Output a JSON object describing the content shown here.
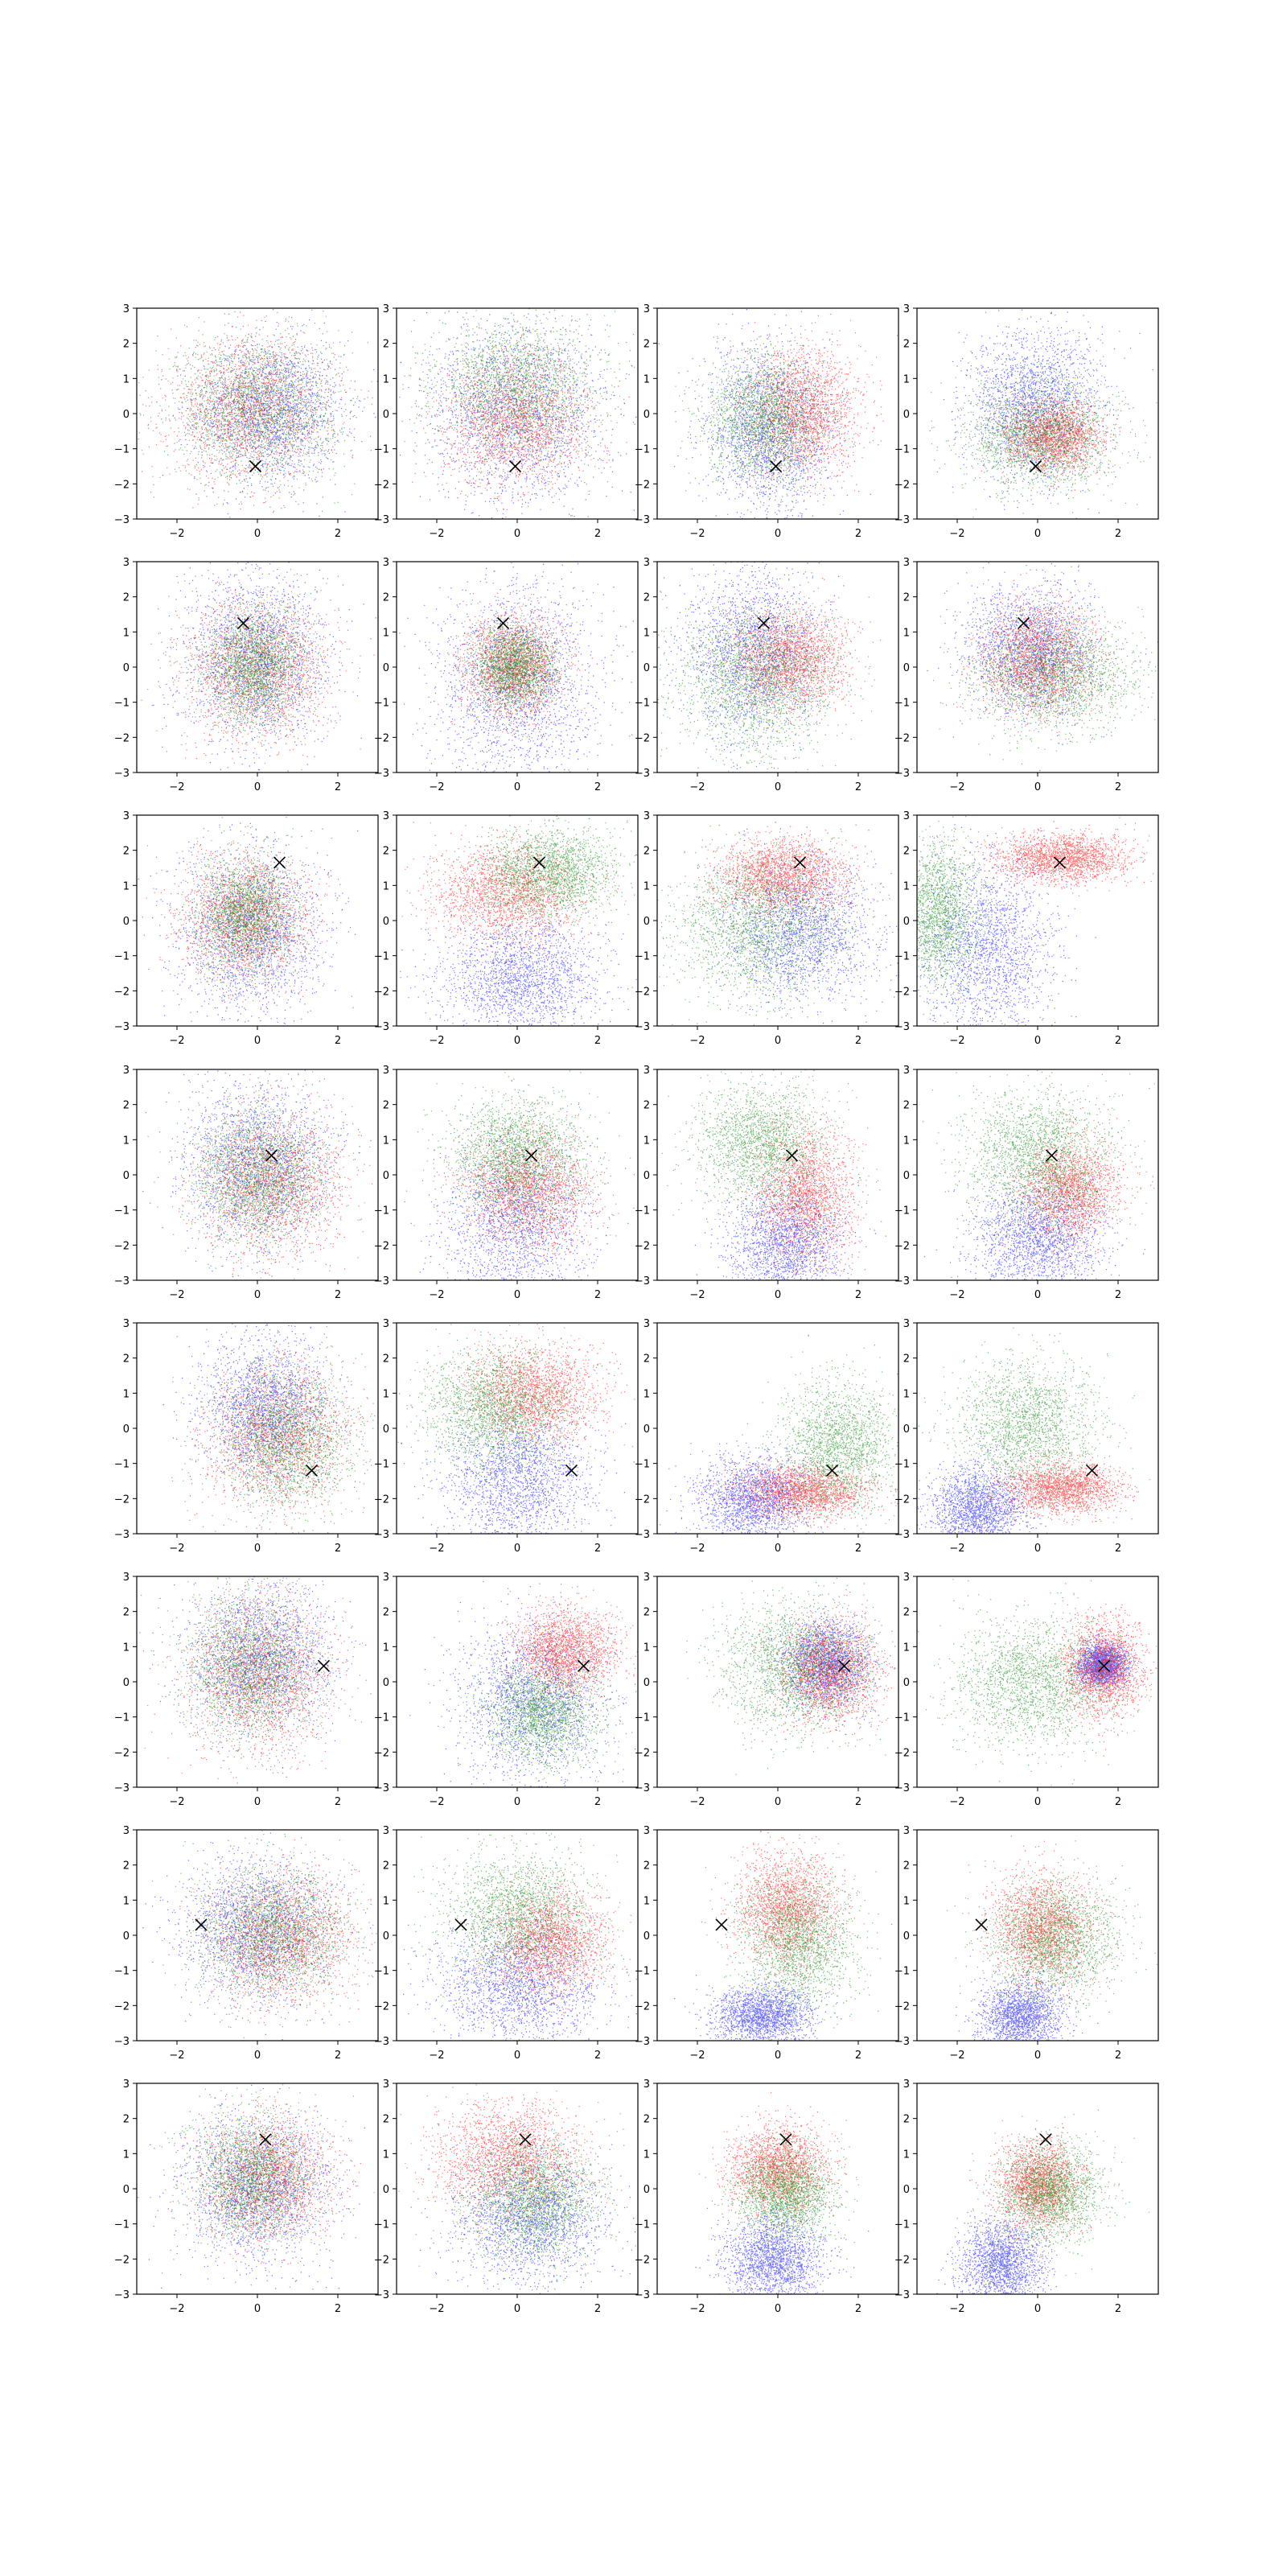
{
  "chart_data": {
    "type": "scatter",
    "grid": false,
    "layout": {
      "rows": 8,
      "cols": 4
    },
    "xlim": [
      -3,
      3
    ],
    "ylim": [
      -3,
      3
    ],
    "xticks": [
      -2,
      0,
      2
    ],
    "yticks": [
      -3,
      -2,
      -1,
      0,
      1,
      2,
      3
    ],
    "tick_labels": {
      "x": [
        "−2",
        "0",
        "2"
      ],
      "y": [
        "−3",
        "−2",
        "−1",
        "0",
        "1",
        "2",
        "3"
      ]
    },
    "series_colors": {
      "blue": "#0000ff",
      "red": "#ff0000",
      "green": "#008000"
    },
    "marker_color": "#000000",
    "points_per_series_approx": 2000,
    "rows": [
      {
        "marker": [
          -0.05,
          -1.5
        ],
        "panels": [
          {
            "blue": [
              0.3,
              0.1,
              0.9,
              1.0
            ],
            "red": [
              -0.2,
              0.1,
              1.0,
              1.0
            ],
            "green": [
              0.0,
              0.2,
              1.0,
              1.0
            ]
          },
          {
            "blue": [
              0.0,
              0.0,
              1.1,
              1.3
            ],
            "red": [
              0.0,
              -0.2,
              0.9,
              0.9
            ],
            "green": [
              0.0,
              0.8,
              1.0,
              0.9
            ]
          },
          {
            "blue": [
              -0.2,
              -0.5,
              0.8,
              1.2
            ],
            "red": [
              0.6,
              0.1,
              0.7,
              0.9
            ],
            "green": [
              -0.4,
              -0.2,
              0.7,
              0.9
            ]
          },
          {
            "blue": [
              -0.1,
              0.3,
              0.8,
              1.1
            ],
            "red": [
              0.4,
              -0.6,
              0.6,
              0.5
            ],
            "green": [
              0.0,
              -0.6,
              0.9,
              0.8
            ]
          }
        ]
      },
      {
        "marker": [
          -0.35,
          1.25
        ],
        "panels": [
          {
            "blue": [
              0.0,
              0.2,
              0.9,
              1.2
            ],
            "red": [
              0.0,
              0.0,
              0.9,
              1.0
            ],
            "green": [
              -0.1,
              0.0,
              0.6,
              0.8
            ]
          },
          {
            "blue": [
              0.0,
              -0.4,
              1.0,
              1.4
            ],
            "red": [
              -0.1,
              0.0,
              0.6,
              0.7
            ],
            "green": [
              -0.1,
              0.0,
              0.5,
              0.6
            ]
          },
          {
            "blue": [
              -0.6,
              0.5,
              0.8,
              1.2
            ],
            "red": [
              0.3,
              0.2,
              0.7,
              0.7
            ],
            "green": [
              -0.6,
              -0.4,
              1.0,
              1.0
            ]
          },
          {
            "blue": [
              -0.2,
              0.5,
              0.8,
              0.9
            ],
            "red": [
              0.0,
              0.2,
              0.7,
              0.8
            ],
            "green": [
              0.4,
              -0.2,
              1.0,
              0.8
            ]
          }
        ]
      },
      {
        "marker": [
          0.55,
          1.65
        ],
        "panels": [
          {
            "blue": [
              -0.2,
              -0.3,
              0.9,
              1.2
            ],
            "red": [
              -0.3,
              0.1,
              0.8,
              0.9
            ],
            "green": [
              -0.3,
              0.2,
              0.6,
              0.8
            ]
          },
          {
            "blue": [
              0.1,
              -1.6,
              1.0,
              0.8
            ],
            "red": [
              -0.3,
              0.8,
              0.9,
              0.7
            ],
            "green": [
              0.8,
              1.4,
              0.8,
              0.6
            ]
          },
          {
            "blue": [
              0.6,
              -0.3,
              0.9,
              1.0
            ],
            "red": [
              0.1,
              1.3,
              0.8,
              0.5
            ],
            "green": [
              -0.6,
              -0.2,
              1.0,
              1.0
            ]
          },
          {
            "blue": [
              -1.2,
              -0.8,
              0.8,
              1.3
            ],
            "red": [
              0.6,
              1.8,
              0.8,
              0.35
            ],
            "green": [
              -2.5,
              0.2,
              0.5,
              1.0
            ]
          }
        ]
      },
      {
        "marker": [
          0.35,
          0.55
        ],
        "panels": [
          {
            "blue": [
              0.0,
              0.3,
              0.9,
              1.2
            ],
            "red": [
              0.3,
              -0.2,
              0.9,
              1.0
            ],
            "green": [
              0.0,
              0.0,
              0.8,
              0.9
            ]
          },
          {
            "blue": [
              0.0,
              -1.5,
              0.9,
              1.2
            ],
            "red": [
              0.3,
              -0.4,
              0.8,
              0.8
            ],
            "green": [
              0.0,
              0.6,
              0.8,
              0.8
            ]
          },
          {
            "blue": [
              0.2,
              -1.9,
              0.7,
              0.8
            ],
            "red": [
              0.7,
              -0.5,
              0.6,
              0.9
            ],
            "green": [
              -0.4,
              0.9,
              0.8,
              0.9
            ]
          },
          {
            "blue": [
              0.0,
              -1.8,
              0.8,
              0.8
            ],
            "red": [
              0.8,
              -0.4,
              0.6,
              0.7
            ],
            "green": [
              0.0,
              0.6,
              0.9,
              0.9
            ]
          }
        ]
      },
      {
        "marker": [
          1.35,
          -1.2
        ],
        "panels": [
          {
            "blue": [
              0.2,
              0.6,
              0.8,
              1.0
            ],
            "red": [
              0.5,
              -0.2,
              0.9,
              1.0
            ],
            "green": [
              0.7,
              -0.3,
              0.8,
              1.0
            ]
          },
          {
            "blue": [
              0.0,
              -1.5,
              0.9,
              0.9
            ],
            "red": [
              0.4,
              1.0,
              0.8,
              0.7
            ],
            "green": [
              -0.6,
              0.6,
              0.9,
              0.8
            ]
          },
          {
            "blue": [
              -0.6,
              -2.0,
              0.7,
              0.6
            ],
            "red": [
              0.6,
              -1.8,
              0.8,
              0.35
            ],
            "green": [
              1.5,
              -0.5,
              0.7,
              0.9
            ]
          },
          {
            "blue": [
              -1.5,
              -2.3,
              0.6,
              0.6
            ],
            "red": [
              0.6,
              -1.7,
              0.7,
              0.35
            ],
            "green": [
              -0.3,
              0.1,
              0.9,
              0.9
            ]
          }
        ]
      },
      {
        "marker": [
          1.65,
          0.45
        ],
        "panels": [
          {
            "blue": [
              0.1,
              0.7,
              0.9,
              1.0
            ],
            "red": [
              0.0,
              0.2,
              0.9,
              1.1
            ],
            "green": [
              -0.2,
              0.4,
              0.8,
              1.0
            ]
          },
          {
            "blue": [
              0.4,
              -0.5,
              0.9,
              1.1
            ],
            "red": [
              1.2,
              0.9,
              0.6,
              0.6
            ],
            "green": [
              0.6,
              -0.9,
              0.7,
              0.7
            ]
          },
          {
            "blue": [
              1.2,
              0.5,
              0.5,
              0.6
            ],
            "red": [
              1.3,
              0.3,
              0.6,
              0.7
            ],
            "green": [
              0.3,
              0.4,
              0.9,
              0.9
            ]
          },
          {
            "blue": [
              1.6,
              0.5,
              0.3,
              0.3
            ],
            "red": [
              1.6,
              0.4,
              0.5,
              0.7
            ],
            "green": [
              -0.2,
              0.0,
              0.9,
              0.9
            ]
          }
        ]
      },
      {
        "marker": [
          -1.4,
          0.3
        ],
        "panels": [
          {
            "blue": [
              0.0,
              0.2,
              0.9,
              1.0
            ],
            "red": [
              0.6,
              -0.1,
              0.9,
              0.9
            ],
            "green": [
              0.4,
              0.1,
              0.9,
              0.9
            ]
          },
          {
            "blue": [
              0.0,
              -1.4,
              1.0,
              0.9
            ],
            "red": [
              0.8,
              -0.2,
              0.7,
              0.7
            ],
            "green": [
              0.0,
              0.6,
              0.9,
              0.9
            ]
          },
          {
            "blue": [
              -0.4,
              -2.3,
              0.6,
              0.4
            ],
            "red": [
              0.2,
              0.8,
              0.6,
              0.8
            ],
            "green": [
              0.5,
              -0.2,
              0.7,
              0.9
            ]
          },
          {
            "blue": [
              -0.4,
              -2.3,
              0.5,
              0.5
            ],
            "red": [
              0.1,
              0.2,
              0.6,
              0.8
            ],
            "green": [
              0.4,
              -0.1,
              0.8,
              0.8
            ]
          }
        ]
      },
      {
        "marker": [
          0.2,
          1.4
        ],
        "panels": [
          {
            "blue": [
              0.0,
              0.0,
              0.9,
              1.0
            ],
            "red": [
              0.2,
              0.3,
              0.8,
              0.9
            ],
            "green": [
              -0.2,
              0.4,
              0.7,
              0.9
            ]
          },
          {
            "blue": [
              0.3,
              -0.8,
              0.9,
              0.9
            ],
            "red": [
              -0.2,
              0.9,
              0.9,
              0.8
            ],
            "green": [
              0.4,
              -0.3,
              0.8,
              0.8
            ]
          },
          {
            "blue": [
              -0.1,
              -2.0,
              0.6,
              0.6
            ],
            "red": [
              0.0,
              0.6,
              0.6,
              0.6
            ],
            "green": [
              0.2,
              -0.1,
              0.6,
              0.6
            ]
          },
          {
            "blue": [
              -0.9,
              -2.1,
              0.5,
              0.6
            ],
            "red": [
              0.0,
              0.1,
              0.5,
              0.6
            ],
            "green": [
              0.3,
              -0.1,
              0.6,
              0.7
            ]
          }
        ]
      }
    ]
  }
}
